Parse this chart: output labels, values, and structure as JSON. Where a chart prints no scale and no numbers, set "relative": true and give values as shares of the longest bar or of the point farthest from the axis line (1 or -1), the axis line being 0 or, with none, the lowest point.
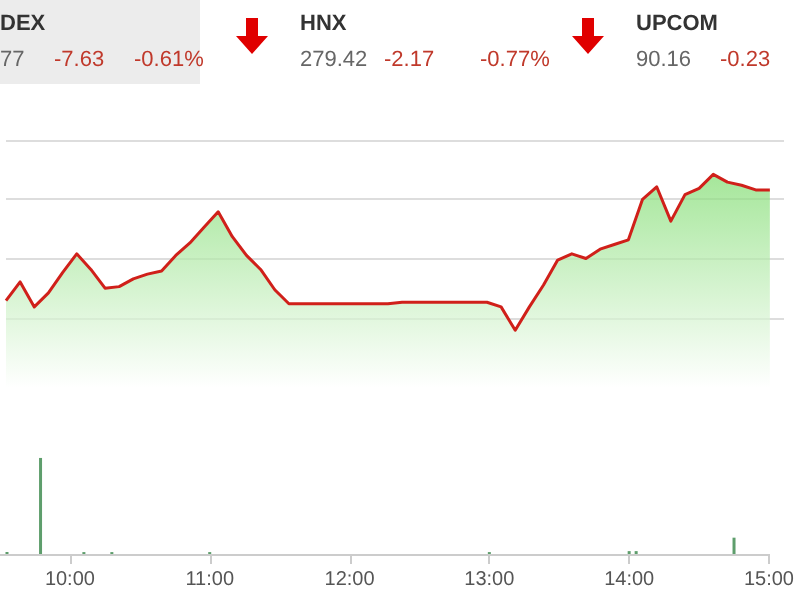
{
  "chart_data": [
    {
      "type": "other",
      "annotations": [
        "DEX",
        "77",
        "-7.63",
        "-0.61%",
        "HNX",
        "279.42",
        "-2.17",
        "-0.77%",
        "UPCOM",
        "90.16",
        "-0.23"
      ]
    },
    {
      "type": "area",
      "relative": true,
      "grid": "y",
      "categories": [
        null,
        null,
        null,
        null,
        null,
        null,
        null,
        null,
        null,
        null,
        null,
        null,
        null,
        null,
        null,
        null,
        null,
        null,
        null,
        null,
        null,
        null,
        null,
        null,
        null,
        null,
        null,
        null,
        null,
        null,
        null,
        null,
        null,
        null,
        null,
        null,
        null,
        null,
        null,
        null,
        null,
        null,
        null,
        null,
        null,
        null,
        null,
        null,
        null,
        null,
        null,
        null,
        null,
        null,
        null,
        null
      ],
      "series": [
        {
          "color": "#d0201a",
          "values": [
            0.19,
            0.31,
            0.15,
            0.24,
            0.37,
            0.49,
            0.39,
            0.27,
            0.28,
            0.33,
            0.36,
            0.38,
            0.48,
            0.56,
            0.66,
            0.76,
            0.6,
            0.48,
            0.39,
            0.26,
            0.17,
            0.17,
            0.17,
            0.17,
            0.17,
            0.17,
            0.17,
            0.17,
            0.18,
            0.18,
            0.18,
            0.18,
            0.18,
            0.18,
            0.18,
            0.15,
            0,
            0.15,
            0.29,
            0.45,
            0.49,
            0.46,
            0.52,
            0.55,
            0.58,
            0.84,
            0.92,
            0.7,
            0.87,
            0.91,
            1,
            0.95,
            0.93,
            0.9,
            0.9,
            null
          ]
        }
      ]
    },
    {
      "type": "bar",
      "relative": true,
      "xlim": [
        9.5,
        15
      ],
      "xticks": [
        {
          "value": 10,
          "label": "10:00"
        },
        {
          "value": 11,
          "label": "11:00"
        },
        {
          "value": 12,
          "label": "12:00"
        },
        {
          "value": 13,
          "label": "13:00"
        },
        {
          "value": 14,
          "label": "14:00"
        },
        {
          "value": 15,
          "label": "15:00"
        }
      ],
      "series": [
        {
          "color": "#5e9e6c",
          "x": [
            9.55,
            9.79,
            10.1,
            10.3,
            11.0,
            13.0,
            14.0,
            14.05,
            14.75
          ],
          "values": [
            0.02,
            1,
            0.02,
            0.02,
            0.02,
            0.02,
            0.03,
            0.03,
            0.17
          ]
        }
      ]
    }
  ]
}
